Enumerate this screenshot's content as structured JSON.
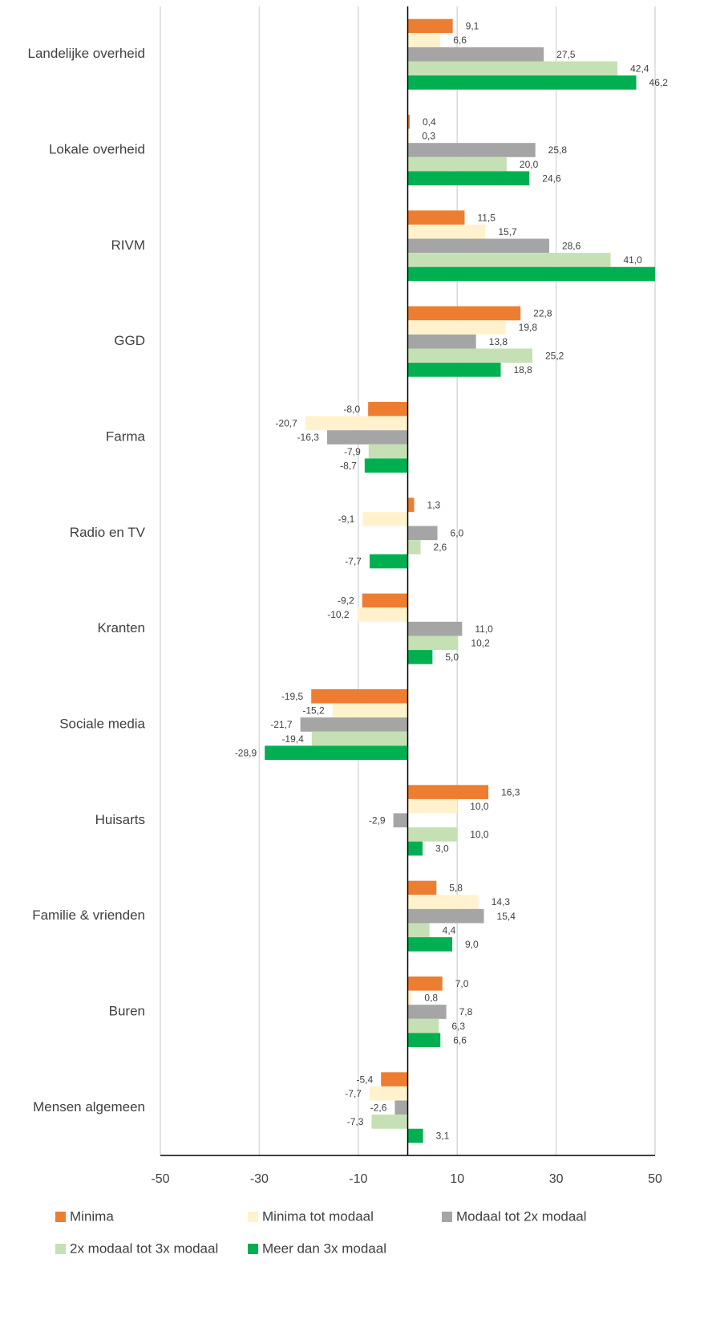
{
  "chart_data": {
    "type": "bar",
    "orientation": "horizontal",
    "categories": [
      "Landelijke overheid",
      "Lokale overheid",
      "RIVM",
      "GGD",
      "Farma",
      "Radio en TV",
      "Kranten",
      "Sociale media",
      "Huisarts",
      "Familie & vrienden",
      "Buren",
      "Mensen algemeen"
    ],
    "series": [
      {
        "name": "Minima",
        "color": "#ed7d31",
        "values": [
          9.1,
          0.4,
          11.5,
          22.8,
          -8.0,
          1.3,
          -9.2,
          -19.5,
          16.3,
          5.8,
          7.0,
          -5.4
        ],
        "value_labels": [
          "9,1",
          "0,4",
          "11,5",
          "22,8",
          "-8,0",
          "1,3",
          "-9,2",
          "-19,5",
          "16,3",
          "5,8",
          "7,0",
          "-5,4"
        ]
      },
      {
        "name": "Minima tot modaal",
        "color": "#fff2cc",
        "values": [
          6.6,
          0.3,
          15.7,
          19.8,
          -20.7,
          -9.1,
          -10.2,
          -15.2,
          10.0,
          14.3,
          0.8,
          -7.7
        ],
        "value_labels": [
          "6,6",
          "0,3",
          "15,7",
          "19,8",
          "-20,7",
          "-9,1",
          "-10,2",
          "-15,2",
          "10,0",
          "14,3",
          "0,8",
          "-7,7"
        ]
      },
      {
        "name": "Modaal tot 2x modaal",
        "color": "#a5a5a5",
        "values": [
          27.5,
          25.8,
          28.6,
          13.8,
          -16.3,
          6.0,
          11.0,
          -21.7,
          -2.9,
          15.4,
          7.8,
          -2.6
        ],
        "value_labels": [
          "27,5",
          "25,8",
          "28,6",
          "13,8",
          "-16,3",
          "6,0",
          "11,0",
          "-21,7",
          "-2,9",
          "15,4",
          "7,8",
          "-2,6"
        ]
      },
      {
        "name": "2x modaal tot 3x modaal",
        "color": "#c5e0b4",
        "values": [
          42.4,
          20.0,
          41.0,
          25.2,
          -7.9,
          2.6,
          10.2,
          -19.4,
          10.0,
          4.4,
          6.3,
          -7.3
        ],
        "value_labels": [
          "42,4",
          "20,0",
          "41,0",
          "25,2",
          "-7,9",
          "2,6",
          "10,2",
          "-19,4",
          "10,0",
          "4,4",
          "6,3",
          "-7,3"
        ]
      },
      {
        "name": "Meer dan 3x modaal",
        "color": "#00b050",
        "values": [
          46.2,
          24.6,
          50,
          18.8,
          -8.7,
          -7.7,
          5.0,
          -28.9,
          3.0,
          9.0,
          6.6,
          3.1
        ],
        "value_labels": [
          "46,2",
          "24,6",
          null,
          "18,8",
          "-8,7",
          "-7,7",
          "5,0",
          "-28,9",
          "3,0",
          "9,0",
          "6,6",
          "3,1"
        ]
      }
    ],
    "xlim": [
      -50,
      50
    ],
    "xticks": [
      -50,
      -30,
      -10,
      10,
      30,
      50
    ],
    "grid": true,
    "legend": "bottom"
  }
}
